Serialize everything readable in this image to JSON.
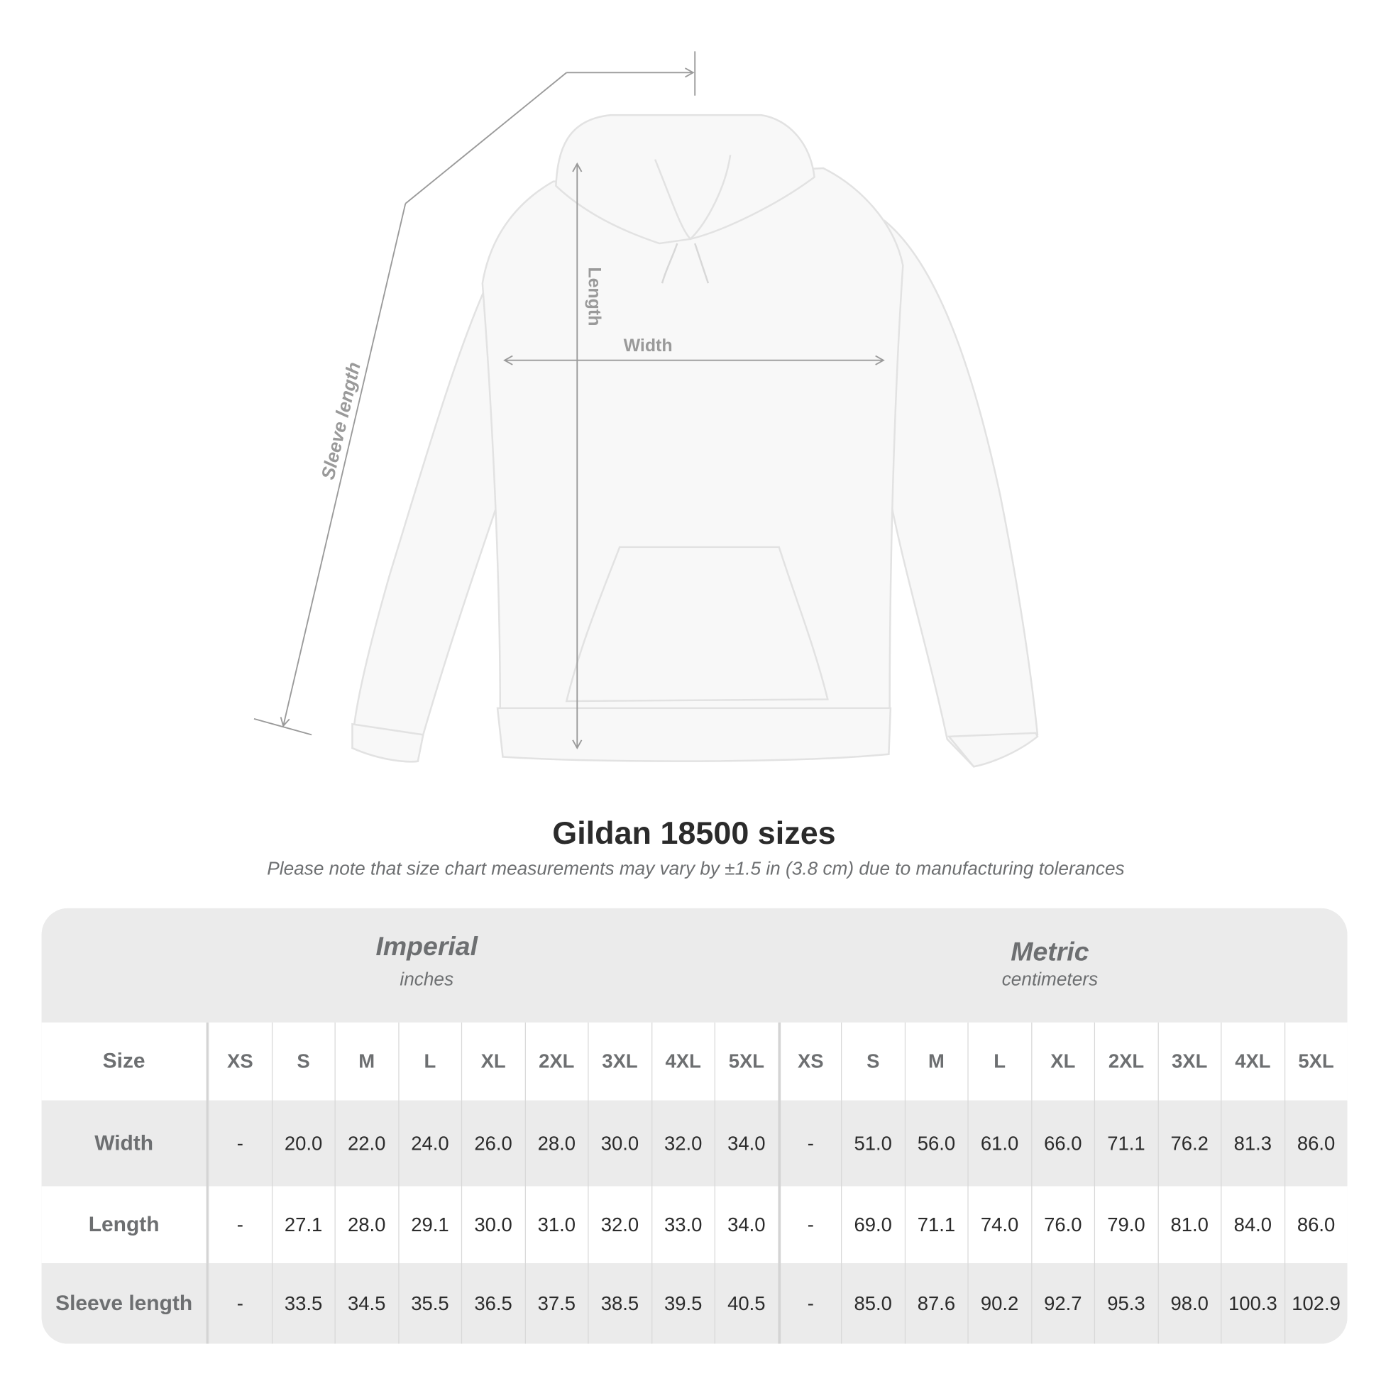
{
  "illustration": {
    "labels": {
      "sleeve_length": "Sleeve length",
      "length": "Length",
      "width": "Width"
    },
    "colors": {
      "measure_lines": "#9a9a9a",
      "garment": "#f7f7f7"
    }
  },
  "title": "Gildan 18500 sizes",
  "subtitle": "Please note that size chart measurements may vary by ±1.5 in (3.8 cm) due to manufacturing tolerances",
  "table": {
    "imperial": {
      "name": "Imperial",
      "unit": "inches"
    },
    "metric": {
      "name": "Metric",
      "unit": "centimeters"
    },
    "size_label": "Size",
    "sizes": [
      "XS",
      "S",
      "M",
      "L",
      "XL",
      "2XL",
      "3XL",
      "4XL",
      "5XL",
      "XS",
      "S",
      "M",
      "L",
      "XL",
      "2XL",
      "3XL",
      "4XL",
      "5XL"
    ],
    "rows": [
      {
        "label": "Width",
        "values": [
          "-",
          "20.0",
          "22.0",
          "24.0",
          "26.0",
          "28.0",
          "30.0",
          "32.0",
          "34.0",
          "-",
          "51.0",
          "56.0",
          "61.0",
          "66.0",
          "71.1",
          "76.2",
          "81.3",
          "86.0"
        ]
      },
      {
        "label": "Length",
        "values": [
          "-",
          "27.1",
          "28.0",
          "29.1",
          "30.0",
          "31.0",
          "32.0",
          "33.0",
          "34.0",
          "-",
          "69.0",
          "71.1",
          "74.0",
          "76.0",
          "79.0",
          "81.0",
          "84.0",
          "86.0"
        ]
      },
      {
        "label": "Sleeve length",
        "values": [
          "-",
          "33.5",
          "34.5",
          "35.5",
          "36.5",
          "37.5",
          "38.5",
          "39.5",
          "40.5",
          "-",
          "85.0",
          "87.6",
          "90.2",
          "92.7",
          "95.3",
          "98.0",
          "100.3",
          "102.9"
        ]
      }
    ]
  }
}
